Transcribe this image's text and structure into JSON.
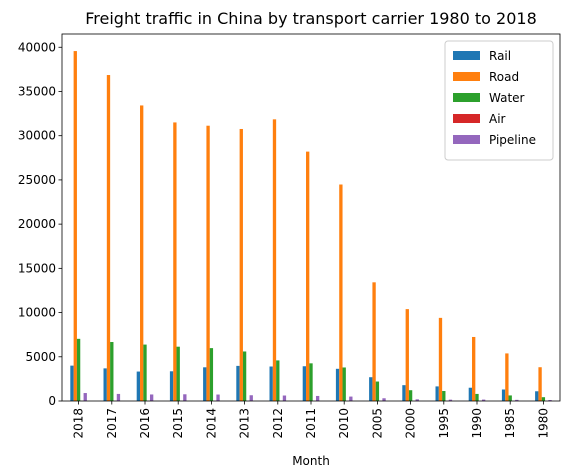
{
  "chart_data": {
    "type": "bar",
    "title": "Freight traffic in China by transport carrier 1980 to 2018",
    "xlabel": "Month",
    "ylabel": "",
    "ylim": [
      0,
      41500
    ],
    "yticks": [
      0,
      5000,
      10000,
      15000,
      20000,
      25000,
      30000,
      35000,
      40000
    ],
    "legend_position": "top-right",
    "categories": [
      "2018",
      "2017",
      "2016",
      "2015",
      "2014",
      "2013",
      "2012",
      "2011",
      "2010",
      "2005",
      "2000",
      "1995",
      "1990",
      "1985",
      "1980"
    ],
    "series": [
      {
        "name": "Rail",
        "color": "#1f77b4",
        "values": [
          4000,
          3690,
          3330,
          3360,
          3810,
          3970,
          3900,
          3930,
          3640,
          2690,
          1790,
          1650,
          1500,
          1300,
          1100
        ]
      },
      {
        "name": "Road",
        "color": "#ff7f0e",
        "values": [
          39570,
          36860,
          33420,
          31500,
          31130,
          30760,
          31850,
          28200,
          24480,
          13420,
          10390,
          9400,
          7240,
          5380,
          3820
        ]
      },
      {
        "name": "Water",
        "color": "#2ca02c",
        "values": [
          7030,
          6670,
          6380,
          6140,
          5980,
          5600,
          4590,
          4260,
          3790,
          2200,
          1220,
          1130,
          800,
          630,
          430
        ]
      },
      {
        "name": "Air",
        "color": "#d62728",
        "values": [
          7,
          7,
          7,
          6,
          6,
          6,
          5,
          6,
          6,
          3,
          2,
          1,
          0,
          0,
          0
        ]
      },
      {
        "name": "Pipeline",
        "color": "#9467bd",
        "values": [
          900,
          800,
          740,
          760,
          730,
          650,
          620,
          570,
          500,
          310,
          190,
          150,
          160,
          130,
          110
        ]
      }
    ]
  }
}
